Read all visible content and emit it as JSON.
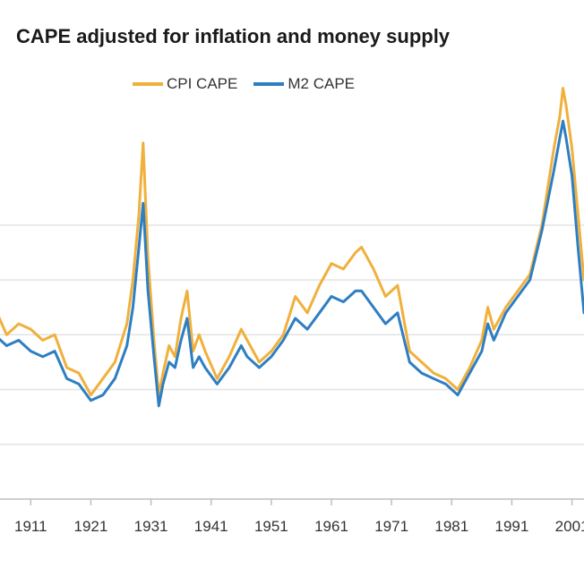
{
  "chart_data": {
    "type": "line",
    "title": "CAPE adjusted for inflation and money supply",
    "xlabel": "",
    "ylabel": "",
    "x_tick_labels": [
      "1911",
      "1921",
      "1931",
      "1941",
      "1951",
      "1961",
      "1971",
      "1981",
      "1991",
      "2001"
    ],
    "x_range": [
      1905,
      2003
    ],
    "y_range": [
      0,
      40
    ],
    "y_gridlines": [
      5,
      10,
      15,
      20,
      25
    ],
    "legend_position": "top",
    "grid": true,
    "series": [
      {
        "name": "CPI CAPE",
        "color": "#F0B03C",
        "x": [
          1905,
          1907,
          1909,
          1911,
          1913,
          1915,
          1917,
          1919,
          1921,
          1923,
          1925,
          1927,
          1928,
          1929,
          1929.7,
          1930.5,
          1931.5,
          1932.3,
          1933,
          1934,
          1935,
          1936,
          1937,
          1938,
          1939,
          1940,
          1942,
          1944,
          1946,
          1947,
          1949,
          1951,
          1953,
          1955,
          1957,
          1959,
          1961,
          1963,
          1965,
          1966,
          1968,
          1970,
          1972,
          1974,
          1976,
          1978,
          1980,
          1982,
          1984,
          1986,
          1987,
          1988,
          1990,
          1992,
          1994,
          1996,
          1998,
          1999,
          1999.5,
          2000,
          2001,
          2002,
          2003
        ],
        "y": [
          17.5,
          15,
          16,
          15.5,
          14.5,
          15,
          12,
          11.5,
          9.5,
          11,
          12.5,
          16,
          20,
          26,
          32.5,
          22,
          14.5,
          9.5,
          11.5,
          14,
          13,
          16.5,
          19,
          13.5,
          15,
          13.5,
          11,
          13,
          15.5,
          14.5,
          12.5,
          13.5,
          15,
          18.5,
          17,
          19.5,
          21.5,
          21,
          22.5,
          23,
          21,
          18.5,
          19.5,
          13.5,
          12.5,
          11.5,
          11,
          10,
          12,
          14.5,
          17.5,
          15.5,
          17.5,
          19,
          20.5,
          25,
          32,
          35,
          37.5,
          36,
          32,
          26,
          20
        ]
      },
      {
        "name": "M2 CAPE",
        "color": "#2E7EC2",
        "x": [
          1905,
          1907,
          1909,
          1911,
          1913,
          1915,
          1917,
          1919,
          1921,
          1923,
          1925,
          1927,
          1928,
          1929,
          1929.7,
          1930.5,
          1931.5,
          1932.3,
          1933,
          1934,
          1935,
          1936,
          1937,
          1938,
          1939,
          1940,
          1942,
          1944,
          1946,
          1947,
          1949,
          1951,
          1953,
          1955,
          1957,
          1959,
          1961,
          1963,
          1965,
          1966,
          1968,
          1970,
          1972,
          1974,
          1976,
          1978,
          1980,
          1982,
          1984,
          1986,
          1987,
          1988,
          1990,
          1992,
          1994,
          1996,
          1998,
          1999,
          1999.5,
          2000,
          2001,
          2002,
          2003
        ],
        "y": [
          15,
          14,
          14.5,
          13.5,
          13,
          13.5,
          11,
          10.5,
          9,
          9.5,
          11,
          14,
          17.5,
          23,
          27,
          19,
          13,
          8.5,
          10.5,
          12.5,
          12,
          14.5,
          16.5,
          12,
          13,
          12,
          10.5,
          12,
          14,
          13,
          12,
          13,
          14.5,
          16.5,
          15.5,
          17,
          18.5,
          18,
          19,
          19,
          17.5,
          16,
          17,
          12.5,
          11.5,
          11,
          10.5,
          9.5,
          11.5,
          13.5,
          16,
          14.5,
          17,
          18.5,
          20,
          24.5,
          30,
          33,
          34.5,
          33,
          29.5,
          23,
          17
        ]
      }
    ]
  }
}
